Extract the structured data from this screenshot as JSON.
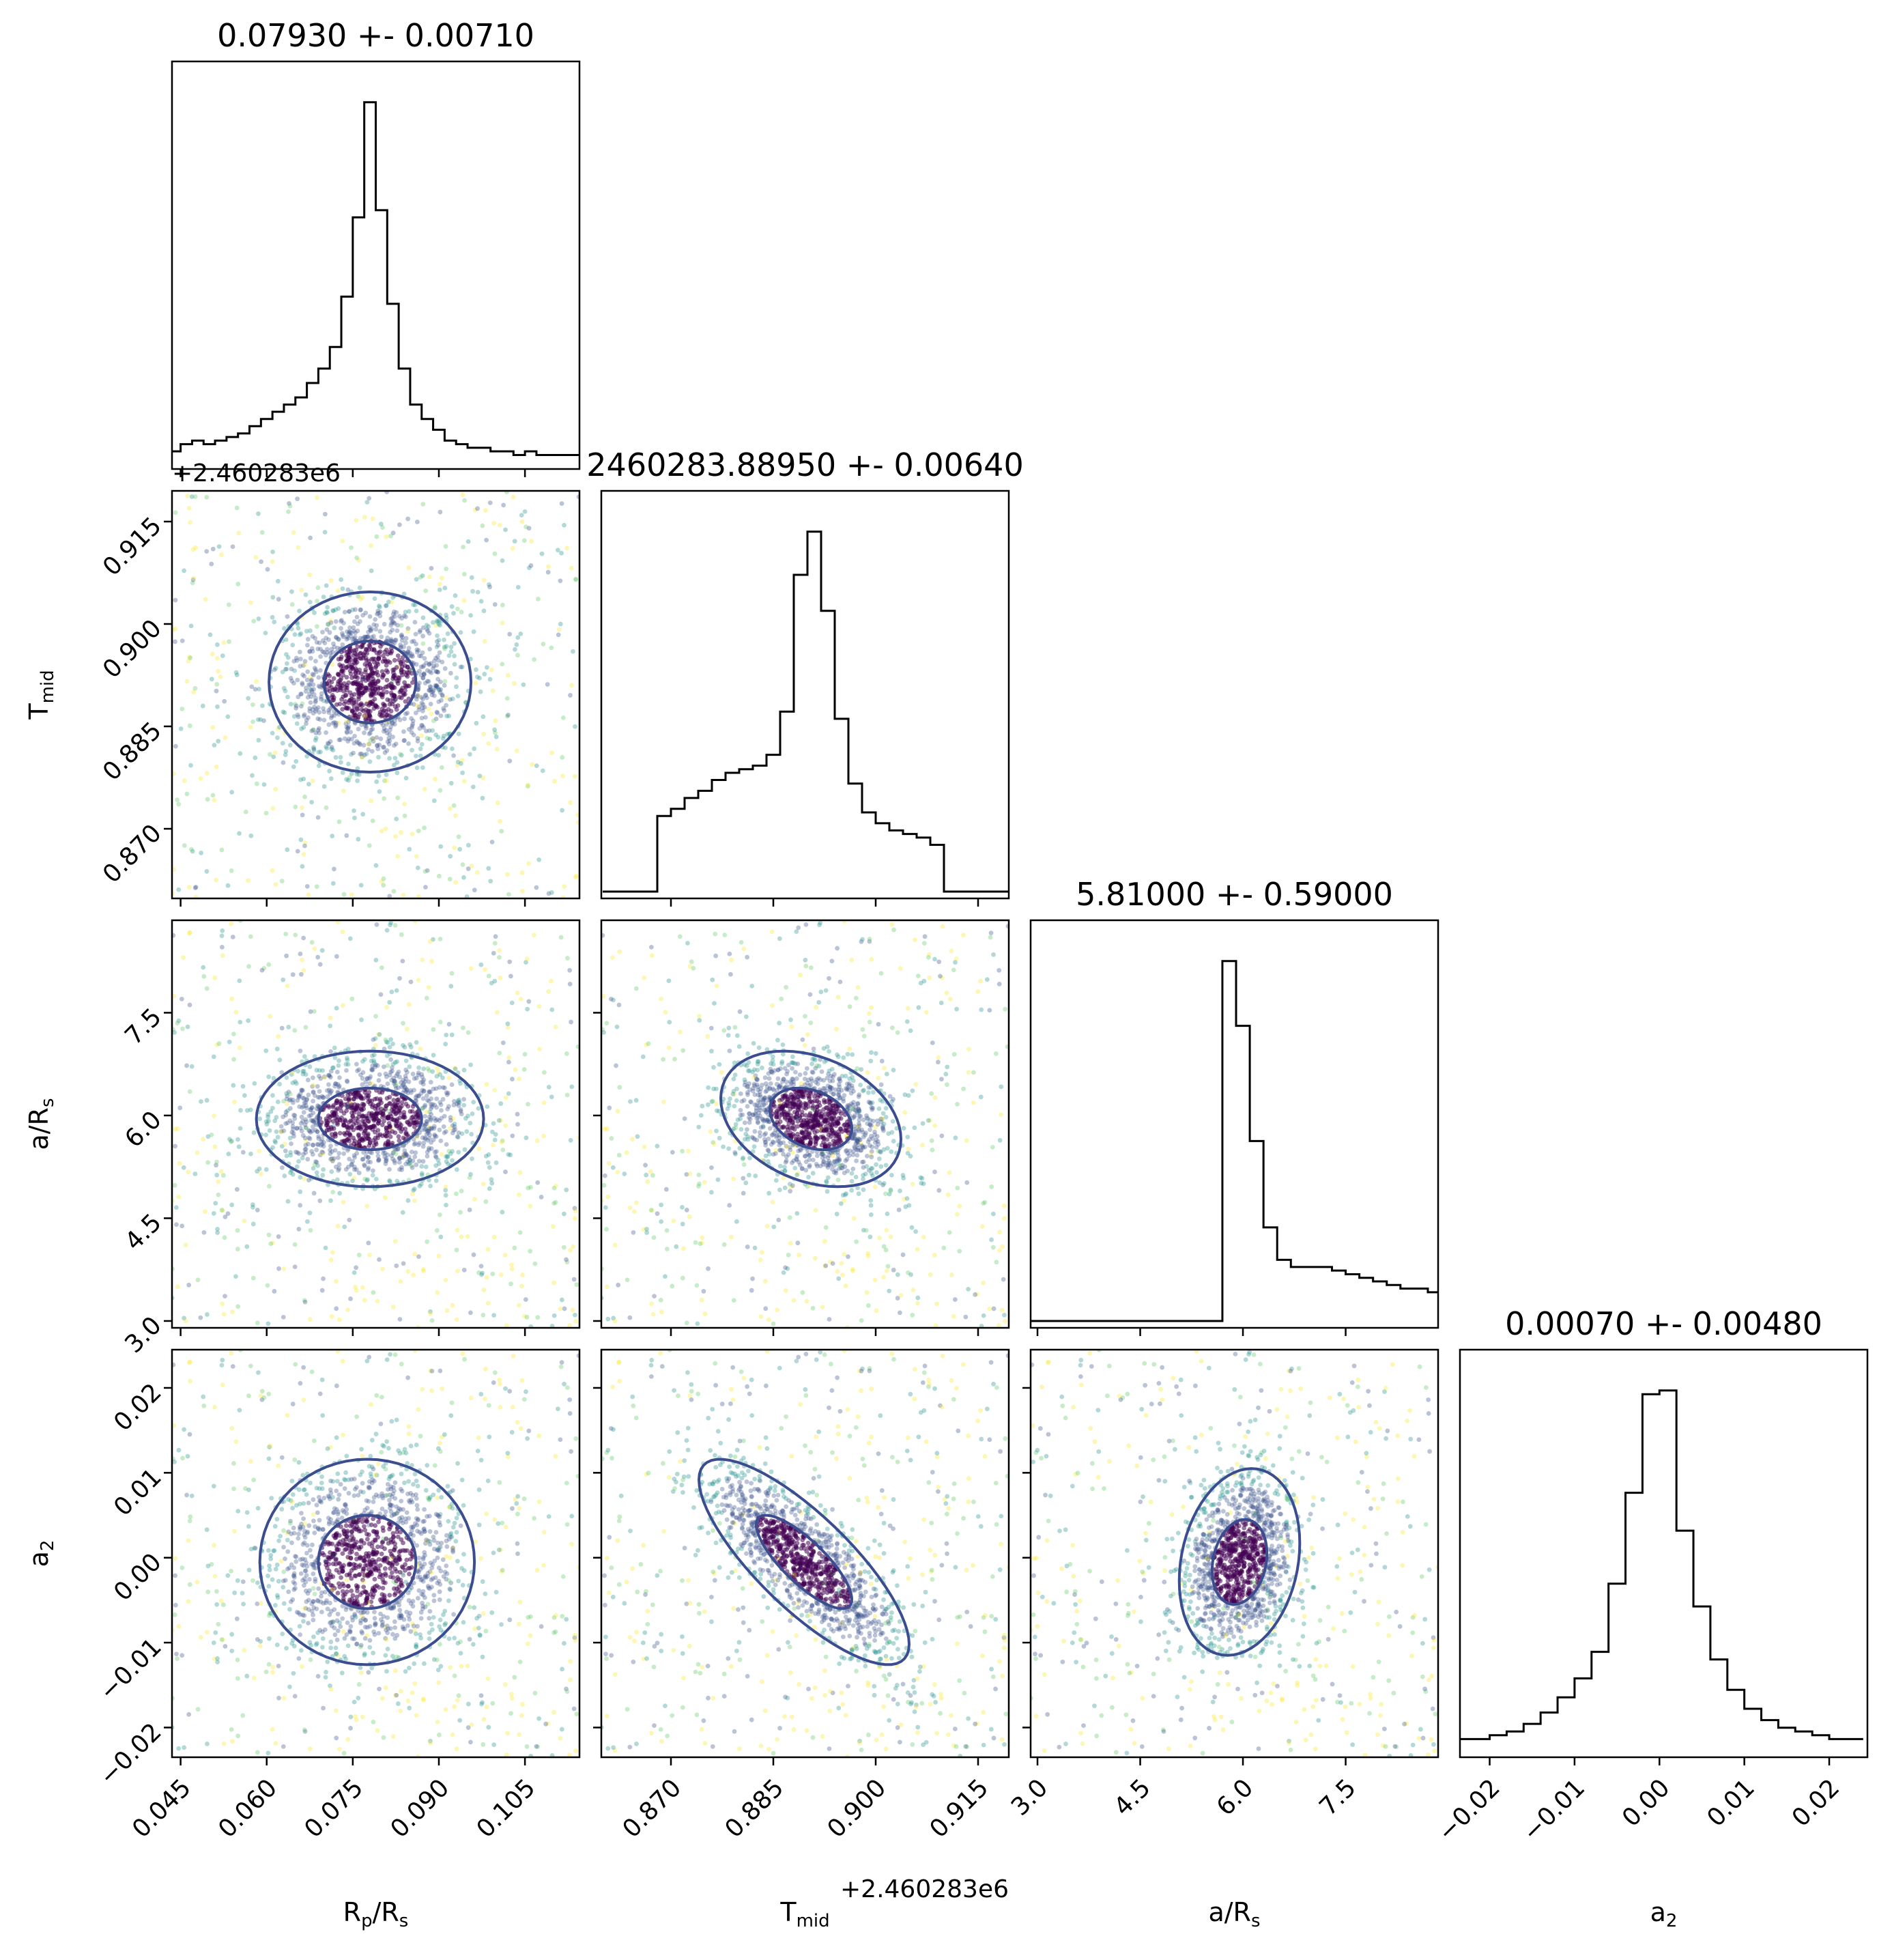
{
  "chart_data": {
    "type": "corner",
    "parameters": [
      {
        "key": "rp",
        "label": "R",
        "sub": "p",
        "suffix": "/R",
        "sub2": "s",
        "range": [
          0.0435,
          0.1145
        ],
        "ticks": [
          "0.045",
          "0.060",
          "0.075",
          "0.090",
          "0.105"
        ],
        "tick_values": [
          0.045,
          0.06,
          0.075,
          0.09,
          0.105
        ],
        "title": "0.07930 +- 0.00710",
        "offset": ""
      },
      {
        "key": "tmid",
        "label": "T",
        "sub": "mid",
        "suffix": "",
        "sub2": "",
        "range": [
          0.8598,
          0.9195
        ],
        "ticks": [
          "0.870",
          "0.885",
          "0.900",
          "0.915"
        ],
        "tick_values": [
          0.87,
          0.885,
          0.9,
          0.915
        ],
        "title": "2460283.88950 +- 0.00640",
        "offset": "+2.460283e6"
      },
      {
        "key": "ars",
        "label": "a/R",
        "sub": "s",
        "suffix": "",
        "sub2": "",
        "range": [
          2.9,
          8.85
        ],
        "ticks": [
          "3.0",
          "4.5",
          "6.0",
          "7.5"
        ],
        "tick_values": [
          3.0,
          4.5,
          6.0,
          7.5
        ],
        "title": "5.81000 +- 0.59000",
        "offset": ""
      },
      {
        "key": "a2",
        "label": "a",
        "sub": "2",
        "suffix": "",
        "sub2": "",
        "range": [
          -0.0235,
          0.0245
        ],
        "ticks": [
          "−0.02",
          "−0.01",
          "0.00",
          "0.01",
          "0.02"
        ],
        "tick_values": [
          -0.02,
          -0.01,
          0.0,
          0.01,
          0.02
        ],
        "title": "0.00070 +- 0.00480",
        "offset": ""
      }
    ],
    "histograms": [
      {
        "param": "rp",
        "bin_centers": [
          0.044,
          0.046,
          0.048,
          0.05,
          0.052,
          0.054,
          0.056,
          0.058,
          0.06,
          0.062,
          0.064,
          0.066,
          0.068,
          0.07,
          0.072,
          0.074,
          0.076,
          0.078,
          0.08,
          0.082,
          0.084,
          0.086,
          0.088,
          0.09,
          0.092,
          0.094,
          0.096,
          0.098,
          0.1,
          0.102,
          0.104,
          0.106,
          0.108,
          0.11,
          0.112,
          0.114
        ],
        "counts": [
          0.03,
          0.05,
          0.06,
          0.05,
          0.06,
          0.07,
          0.08,
          0.1,
          0.12,
          0.14,
          0.16,
          0.18,
          0.22,
          0.26,
          0.32,
          0.46,
          0.68,
          1.0,
          0.7,
          0.44,
          0.26,
          0.16,
          0.12,
          0.09,
          0.06,
          0.05,
          0.04,
          0.04,
          0.03,
          0.03,
          0.02,
          0.03,
          0.02,
          0.02,
          0.02,
          0.02
        ]
      },
      {
        "param": "tmid",
        "bin_centers": [
          0.861,
          0.863,
          0.865,
          0.867,
          0.869,
          0.871,
          0.873,
          0.875,
          0.877,
          0.879,
          0.881,
          0.883,
          0.885,
          0.887,
          0.889,
          0.891,
          0.893,
          0.895,
          0.897,
          0.899,
          0.901,
          0.903,
          0.905,
          0.907,
          0.909,
          0.911,
          0.913,
          0.915,
          0.917,
          0.919
        ],
        "counts": [
          0,
          0,
          0,
          0,
          0.21,
          0.23,
          0.26,
          0.28,
          0.31,
          0.33,
          0.34,
          0.35,
          0.38,
          0.5,
          0.88,
          1.0,
          0.78,
          0.48,
          0.3,
          0.22,
          0.19,
          0.17,
          0.16,
          0.15,
          0.13,
          0,
          0,
          0,
          0,
          0
        ]
      },
      {
        "param": "ars",
        "bin_centers": [
          3.0,
          3.2,
          3.4,
          3.6,
          3.8,
          4.0,
          4.2,
          4.4,
          4.6,
          4.8,
          5.0,
          5.2,
          5.4,
          5.6,
          5.8,
          6.0,
          6.2,
          6.4,
          6.6,
          6.8,
          7.0,
          7.2,
          7.4,
          7.6,
          7.8,
          8.0,
          8.2,
          8.4,
          8.6,
          8.8
        ],
        "counts": [
          0,
          0,
          0,
          0,
          0,
          0,
          0,
          0,
          0,
          0,
          0,
          0,
          0,
          0,
          1.0,
          0.82,
          0.5,
          0.26,
          0.17,
          0.15,
          0.15,
          0.15,
          0.14,
          0.13,
          0.12,
          0.11,
          0.1,
          0.09,
          0.09,
          0.08
        ]
      },
      {
        "param": "a2",
        "bin_centers": [
          -0.023,
          -0.021,
          -0.019,
          -0.017,
          -0.015,
          -0.013,
          -0.011,
          -0.009,
          -0.007,
          -0.005,
          -0.003,
          -0.001,
          0.001,
          0.003,
          0.005,
          0.007,
          0.009,
          0.011,
          0.013,
          0.015,
          0.017,
          0.019,
          0.021,
          0.023
        ],
        "counts": [
          0.03,
          0.03,
          0.04,
          0.05,
          0.07,
          0.1,
          0.14,
          0.19,
          0.26,
          0.44,
          0.68,
          0.94,
          0.95,
          0.58,
          0.38,
          0.24,
          0.16,
          0.11,
          0.08,
          0.06,
          0.05,
          0.04,
          0.03,
          0.03
        ]
      }
    ],
    "pairs": [
      {
        "x": "rp",
        "y": "tmid",
        "center": [
          0.078,
          0.8915
        ],
        "spread": [
          0.008,
          0.006
        ],
        "rho": 0.0
      },
      {
        "x": "rp",
        "y": "ars",
        "center": [
          0.078,
          5.95
        ],
        "spread": [
          0.009,
          0.45
        ],
        "rho": 0.0
      },
      {
        "x": "tmid",
        "y": "ars",
        "center": [
          0.8905,
          5.95
        ],
        "spread": [
          0.006,
          0.45
        ],
        "rho": -0.3
      },
      {
        "x": "rp",
        "y": "a2",
        "center": [
          0.0775,
          -0.0005
        ],
        "spread": [
          0.0085,
          0.0055
        ],
        "rho": 0.0
      },
      {
        "x": "tmid",
        "y": "a2",
        "center": [
          0.8895,
          -0.0005
        ],
        "spread": [
          0.007,
          0.0055
        ],
        "rho": -0.8
      },
      {
        "x": "ars",
        "y": "a2",
        "center": [
          5.95,
          -0.0005
        ],
        "spread": [
          0.4,
          0.005
        ],
        "rho": 0.2
      }
    ],
    "colors": {
      "hist": "#000000",
      "points_core": "#440154",
      "points_mid": "#3b528b",
      "points_outer": "#21918c",
      "points_far": "#5ec962",
      "points_edge": "#fde725",
      "contour": "#3b4d8f",
      "contour_edge": "#f5e017"
    },
    "grid": false
  }
}
